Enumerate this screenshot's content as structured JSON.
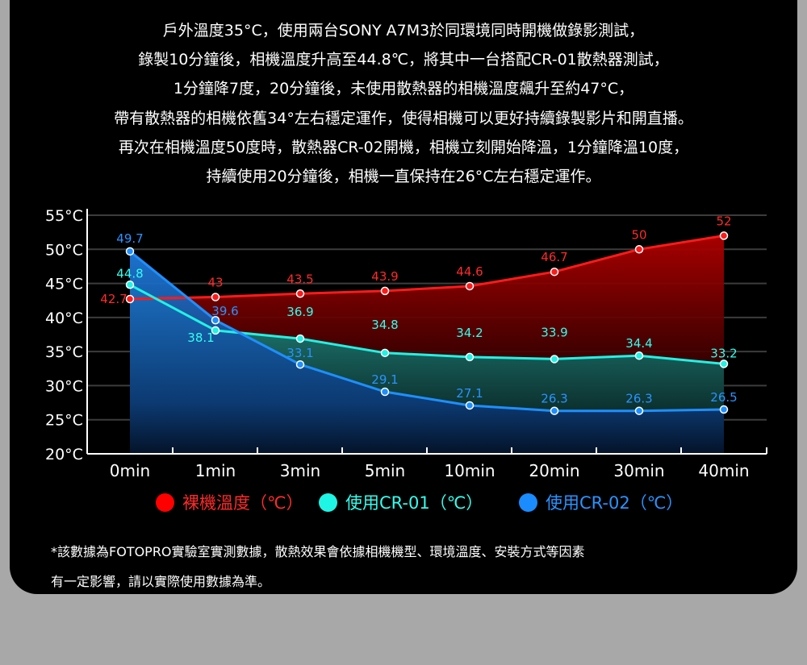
{
  "intro_lines": [
    "戶外溫度35°C，使用兩台SONY A7M3於同環境同時開機做錄影測試，",
    "錄製10分鐘後，相機溫度升高至44.8℃，將其中一台搭配CR-01散熱器測試，",
    "1分鐘降7度，20分鐘後，未使用散熱器的相機溫度飆升至約47°C，",
    "帶有散熱器的相機依舊34°左右穩定運作，使得相機可以更好持續錄製影片和開直播。",
    "再次在相機溫度50度時，散熱器CR-02開機，相機立刻開始降溫，1分鐘降溫10度，",
    "持續使用20分鐘後，相機一直保持在26°C左右穩定運作。"
  ],
  "chart_data": {
    "type": "line",
    "categories": [
      "0min",
      "1min",
      "3min",
      "5min",
      "10min",
      "20min",
      "30min",
      "40min"
    ],
    "y_ticks": [
      "20°C",
      "25°C",
      "30°C",
      "35°C",
      "40°C",
      "45°C",
      "50°C",
      "55°C"
    ],
    "ylim": [
      20,
      55
    ],
    "grid": true,
    "legend_position": "bottom",
    "series": [
      {
        "name": "裸機溫度（℃）",
        "color": "#ff1a1a",
        "label_color": "#ff2a2a",
        "x_index": [
          0,
          1,
          2,
          3,
          4,
          5,
          6,
          7
        ],
        "values": [
          42.7,
          43,
          43.5,
          43.9,
          44.6,
          46.7,
          50,
          52
        ],
        "labels": [
          "42.7",
          "43",
          "43.5",
          "43.9",
          "44.6",
          "46.7",
          "50",
          "52"
        ]
      },
      {
        "name": "使用CR-01（℃）",
        "color": "#21f2e3",
        "label_color": "#33ffee",
        "x_index": [
          0,
          1,
          2,
          3,
          4,
          5,
          6,
          7
        ],
        "values": [
          44.8,
          38.1,
          36.9,
          34.8,
          34.2,
          33.9,
          34.4,
          33.2
        ],
        "labels": [
          "44.8",
          "38.1",
          "36.9",
          "34.8",
          "34.2",
          "33.9",
          "34.4",
          "33.2"
        ]
      },
      {
        "name": "使用CR-02（℃）",
        "color": "#1e8fff",
        "label_color": "#2a93ff",
        "x_index": [
          0,
          1,
          2,
          3,
          4,
          5,
          6,
          7
        ],
        "values": [
          49.7,
          39.6,
          33.1,
          29.1,
          27.1,
          26.3,
          26.3,
          26.5
        ],
        "labels": [
          "49.7",
          "39.6",
          "33.1",
          "29.1",
          "27.1",
          "26.3",
          "26.3",
          "26.5"
        ]
      }
    ]
  },
  "footnote_lines": [
    "*該數據為FOTOPRO實驗室實測數據，散熱效果會依據相機機型、環境溫度、安裝方式等因素",
    "有一定影響，請以實際使用數據為準。"
  ]
}
